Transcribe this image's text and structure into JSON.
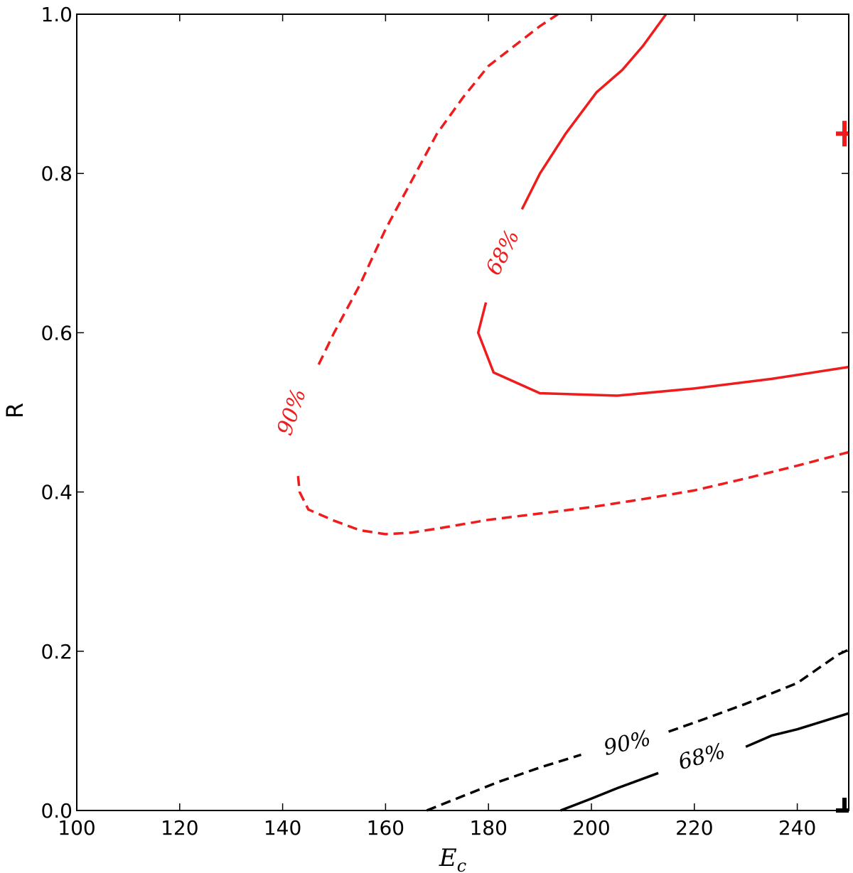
{
  "chart_data": {
    "type": "line",
    "title": "",
    "xlabel": "E",
    "xlabel_subscript": "c",
    "ylabel": "R",
    "xlim": [
      100,
      250
    ],
    "ylim": [
      0,
      1
    ],
    "x_ticks": [
      100,
      120,
      140,
      160,
      180,
      200,
      220,
      240
    ],
    "x_tick_labels": [
      "100",
      "120",
      "140",
      "160",
      "180",
      "200",
      "220",
      "240"
    ],
    "y_ticks": [
      0.0,
      0.2,
      0.4,
      0.6,
      0.8,
      1.0
    ],
    "y_tick_labels": [
      "0.0",
      "0.2",
      "0.4",
      "0.6",
      "0.8",
      "1.0"
    ],
    "grid": false,
    "colors": {
      "red": "#ee1c1c",
      "black": "#000000"
    },
    "series": [
      {
        "color": "red",
        "style": "dashed",
        "segments": [
          [
            [
              143,
              0.42
            ],
            [
              143.3,
              0.4
            ],
            [
              145,
              0.378
            ],
            [
              150,
              0.364
            ],
            [
              155,
              0.352
            ],
            [
              160,
              0.347
            ],
            [
              165,
              0.349
            ],
            [
              170,
              0.354
            ],
            [
              180,
              0.365
            ],
            [
              190,
              0.373
            ],
            [
              200,
              0.381
            ],
            [
              210,
              0.391
            ],
            [
              220,
              0.402
            ],
            [
              230,
              0.417
            ],
            [
              240,
              0.433
            ],
            [
              250,
              0.45
            ]
          ],
          [
            [
              147,
              0.56
            ],
            [
              150,
              0.6
            ],
            [
              155,
              0.66
            ],
            [
              160,
              0.73
            ],
            [
              165,
              0.79
            ],
            [
              170,
              0.85
            ],
            [
              175,
              0.895
            ],
            [
              180,
              0.935
            ],
            [
              185,
              0.96
            ],
            [
              190,
              0.985
            ],
            [
              193.5,
              1.0
            ]
          ]
        ]
      },
      {
        "color": "red",
        "style": "solid",
        "segments": [
          [
            [
              179.5,
              0.638
            ],
            [
              178,
              0.6
            ],
            [
              181,
              0.55
            ],
            [
              190,
              0.524
            ],
            [
              205,
              0.521
            ],
            [
              220,
              0.53
            ],
            [
              235,
              0.542
            ],
            [
              250,
              0.557
            ]
          ],
          [
            [
              186.5,
              0.755
            ],
            [
              190,
              0.8
            ],
            [
              195,
              0.85
            ],
            [
              201,
              0.902
            ],
            [
              206,
              0.93
            ],
            [
              210,
              0.96
            ],
            [
              214.5,
              1.0
            ]
          ]
        ]
      },
      {
        "color": "black",
        "style": "dashed",
        "segments": [
          [
            [
              168,
              0.0
            ],
            [
              175,
              0.018
            ],
            [
              182,
              0.036
            ],
            [
              190,
              0.054
            ],
            [
              198,
              0.07
            ]
          ],
          [
            [
              215,
              0.099
            ],
            [
              222,
              0.115
            ],
            [
              230,
              0.134
            ],
            [
              240,
              0.16
            ],
            [
              248,
              0.196
            ],
            [
              250,
              0.202
            ]
          ]
        ]
      },
      {
        "color": "black",
        "style": "solid",
        "segments": [
          [
            [
              194,
              0.0
            ],
            [
              200,
              0.015
            ],
            [
              205,
              0.028
            ],
            [
              213,
              0.047
            ]
          ],
          [
            [
              230,
              0.08
            ],
            [
              235,
              0.094
            ],
            [
              240,
              0.102
            ],
            [
              250,
              0.122
            ]
          ]
        ]
      }
    ],
    "contour_labels": [
      {
        "text": "90%",
        "color": "red",
        "x": 142,
        "y": 0.5,
        "angle": -71
      },
      {
        "text": "68%",
        "color": "red",
        "x": 183,
        "y": 0.7,
        "angle": -63
      },
      {
        "text": "90%",
        "color": "black",
        "x": 207,
        "y": 0.083,
        "angle": -13
      },
      {
        "text": "68%",
        "color": "black",
        "x": 221.5,
        "y": 0.066,
        "angle": -15
      }
    ],
    "markers": [
      {
        "color": "red",
        "x": 250,
        "y": 0.85
      },
      {
        "color": "black",
        "x": 250,
        "y": 0.0
      }
    ]
  }
}
